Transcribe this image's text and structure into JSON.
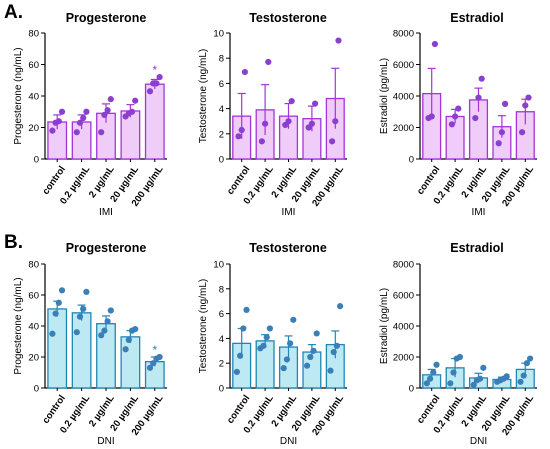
{
  "panel_labels": [
    "A.",
    "B."
  ],
  "chart_data": [
    {
      "type": "bar",
      "title": "Progesterone",
      "xlabel": "IMI",
      "ylabel": "Progesterone (ng/mL)",
      "ylim": [
        0,
        80
      ],
      "yticks": [
        0,
        20,
        40,
        60,
        80
      ],
      "categories": [
        "control",
        "0.2 µg/mL",
        "2 µg/mL",
        "20 µg/mL",
        "200 µg/mL"
      ],
      "values": [
        23.5,
        23.5,
        29,
        30.5,
        47.5
      ],
      "errors": [
        4.5,
        4.5,
        6,
        4,
        3
      ],
      "points": [
        [
          18,
          23,
          24,
          30
        ],
        [
          17,
          23,
          26,
          30
        ],
        [
          17,
          28,
          31,
          38
        ],
        [
          27,
          29,
          30,
          37
        ],
        [
          43,
          48,
          48,
          52
        ]
      ],
      "annotations": [
        "",
        "",
        "",
        "",
        "*"
      ],
      "color": "#a334d9"
    },
    {
      "type": "bar",
      "title": "Testosterone",
      "xlabel": "IMI",
      "ylabel": "Testosterone (ng/mL)",
      "ylim": [
        0,
        10
      ],
      "yticks": [
        0,
        2,
        4,
        6,
        8,
        10
      ],
      "categories": [
        "control",
        "0.2 µg/mL",
        "2 µg/mL",
        "20 µg/mL",
        "200 µg/mL"
      ],
      "values": [
        3.4,
        3.9,
        3.4,
        3.2,
        4.8
      ],
      "errors": [
        1.8,
        2.0,
        1.0,
        1.0,
        2.4
      ],
      "points": [
        [
          1.8,
          2.3,
          6.9
        ],
        [
          1.4,
          2.8,
          7.7
        ],
        [
          2.7,
          3.0,
          4.6
        ],
        [
          2.5,
          2.8,
          4.4
        ],
        [
          1.4,
          3.0,
          9.4
        ]
      ],
      "annotations": [
        "",
        "",
        "",
        "",
        ""
      ],
      "color": "#a334d9"
    },
    {
      "type": "bar",
      "title": "Estradiol",
      "xlabel": "IMI",
      "ylabel": "Estradiol (pg/mL)",
      "ylim": [
        0,
        8000
      ],
      "yticks": [
        0,
        2000,
        4000,
        6000,
        8000
      ],
      "categories": [
        "control",
        "0.2 µg/mL",
        "2 µg/mL",
        "20 µg/mL",
        "200 µg/mL"
      ],
      "values": [
        4150,
        2700,
        3750,
        2050,
        3000
      ],
      "errors": [
        1600,
        450,
        750,
        700,
        800
      ],
      "points": [
        [
          2600,
          2700,
          7300
        ],
        [
          2200,
          2700,
          3200
        ],
        [
          2600,
          3900,
          5100
        ],
        [
          1000,
          1700,
          3500
        ],
        [
          1700,
          3400,
          3900
        ]
      ],
      "annotations": [
        "",
        "",
        "",
        "",
        ""
      ],
      "color": "#a334d9"
    },
    {
      "type": "bar",
      "title": "Progesterone",
      "xlabel": "DNI",
      "ylabel": "Progesterone (ng/mL)",
      "ylim": [
        0,
        80
      ],
      "yticks": [
        0,
        20,
        40,
        60,
        80
      ],
      "categories": [
        "control",
        "0.2 µg/mL",
        "2 µg/mL",
        "20 µg/mL",
        "200 µg/mL"
      ],
      "values": [
        51,
        48.5,
        41.5,
        33,
        17
      ],
      "errors": [
        5,
        5,
        5,
        4,
        3
      ],
      "points": [
        [
          35,
          48,
          55,
          63
        ],
        [
          36,
          46,
          51,
          62
        ],
        [
          34,
          37,
          43,
          50
        ],
        [
          25,
          31,
          37,
          38
        ],
        [
          13,
          16,
          19,
          20
        ]
      ],
      "annotations": [
        "",
        "",
        "",
        "",
        "*"
      ],
      "color": "#1f86b6"
    },
    {
      "type": "bar",
      "title": "Testosterone",
      "xlabel": "DNI",
      "ylabel": "Testosterone (ng/mL)",
      "ylim": [
        0,
        10
      ],
      "yticks": [
        0,
        2,
        4,
        6,
        8,
        10
      ],
      "categories": [
        "control",
        "0.2 µg/mL",
        "2 µg/mL",
        "20 µg/mL",
        "200 µg/mL"
      ],
      "values": [
        3.6,
        3.8,
        3.3,
        2.9,
        3.5
      ],
      "errors": [
        1.2,
        0.5,
        0.9,
        0.6,
        1.1
      ],
      "points": [
        [
          1.3,
          2.6,
          4.8,
          6.3
        ],
        [
          3.2,
          3.4,
          4.1,
          4.8
        ],
        [
          1.6,
          2.3,
          3.6,
          5.5
        ],
        [
          1.8,
          2.5,
          3.0,
          4.4
        ],
        [
          1.4,
          2.9,
          3.4,
          6.6
        ]
      ],
      "annotations": [
        "",
        "",
        "",
        "",
        ""
      ],
      "color": "#1f86b6"
    },
    {
      "type": "bar",
      "title": "Estradiol",
      "xlabel": "DNI",
      "ylabel": "Estradiol (pg/mL)",
      "ylim": [
        0,
        8000
      ],
      "yticks": [
        0,
        2000,
        4000,
        6000,
        8000
      ],
      "categories": [
        "control",
        "0.2 µg/mL",
        "2 µg/mL",
        "20 µg/mL",
        "200 µg/mL"
      ],
      "values": [
        850,
        1300,
        650,
        550,
        1200
      ],
      "errors": [
        350,
        600,
        300,
        150,
        400
      ],
      "points": [
        [
          300,
          600,
          1000,
          1500
        ],
        [
          300,
          1000,
          1900,
          2000
        ],
        [
          200,
          500,
          600,
          1300
        ],
        [
          400,
          500,
          600,
          750
        ],
        [
          400,
          800,
          1600,
          1900
        ]
      ],
      "annotations": [
        "",
        "",
        "",
        "",
        ""
      ],
      "color": "#1f86b6"
    }
  ],
  "colors": {
    "imi_fill": "#f0cdf8",
    "imi_stroke": "#a334d9",
    "imi_point": "#8a3fd1",
    "dni_fill": "#bde9f3",
    "dni_stroke": "#1f86b6",
    "dni_point": "#3a7fb8"
  }
}
